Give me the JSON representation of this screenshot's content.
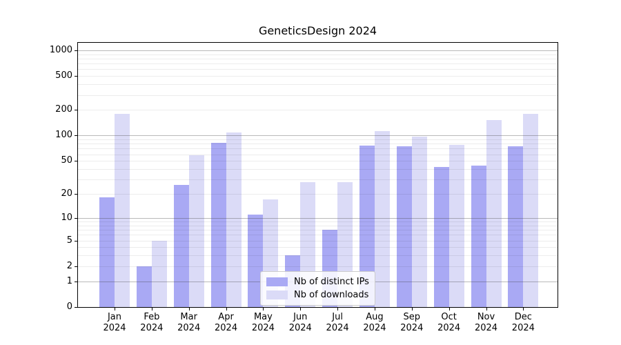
{
  "title": "GeneticsDesign 2024",
  "chart_data": {
    "type": "bar",
    "title": "GeneticsDesign 2024",
    "categories": [
      "Jan",
      "Feb",
      "Mar",
      "Apr",
      "May",
      "Jun",
      "Jul",
      "Aug",
      "Sep",
      "Oct",
      "Nov",
      "Dec"
    ],
    "year": "2024",
    "series": [
      {
        "name": "Nb of distinct IPs",
        "color": "#a9a9f4",
        "values": [
          18,
          2,
          26,
          82,
          11,
          3,
          7,
          76,
          74,
          42,
          44,
          75
        ]
      },
      {
        "name": "Nb of downloads",
        "color": "#dbdbf7",
        "values": [
          180,
          5,
          58,
          108,
          17,
          28,
          28,
          113,
          98,
          78,
          152,
          180
        ]
      }
    ],
    "xlabel": "",
    "ylabel": "",
    "y_axis": {
      "scale": "log1p",
      "tick_labels": [
        0,
        1,
        2,
        5,
        10,
        20,
        50,
        100,
        200,
        500,
        1000
      ],
      "major_gridlines": [
        1,
        10,
        100,
        1000
      ],
      "minor_gridlines": [
        2,
        3,
        4,
        5,
        6,
        7,
        8,
        9,
        20,
        30,
        40,
        50,
        60,
        70,
        80,
        90,
        200,
        300,
        400,
        500,
        600,
        700,
        800,
        900
      ],
      "range_top_value": 1240
    },
    "grid": "horizontal",
    "legend_position": "lower center",
    "bar_layout": "grouped pairs, IPs left, downloads right"
  },
  "colors": {
    "background": "#ffffff",
    "spine": "#000000",
    "major_grid": "#b1b1b1",
    "minor_grid": "#eaeaea",
    "text": "#000000",
    "legend_border": "#cccccc"
  }
}
